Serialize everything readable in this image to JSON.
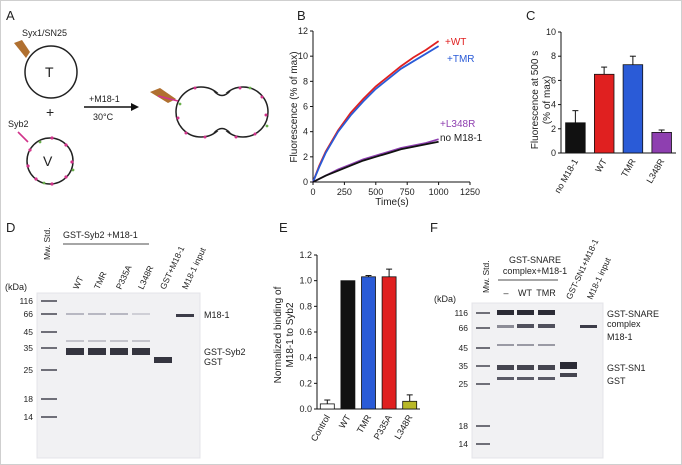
{
  "panels": {
    "A": {
      "letter": "A",
      "t_label": "Syx1/SN25",
      "t_vesicle": "T",
      "plus": "+",
      "v_label": "Syb2",
      "v_vesicle": "V",
      "condition_top": "+M18-1",
      "condition_bottom": "30°C"
    },
    "B": {
      "letter": "B",
      "ylabel": "Fluorescence (% of max)",
      "xlabel": "Time(s)",
      "yticks": [
        "0",
        "2",
        "4",
        "6",
        "8",
        "10",
        "12"
      ],
      "xticks": [
        "0",
        "250",
        "500",
        "750",
        "1000",
        "1250"
      ],
      "legend": [
        "+WT",
        "+TMR",
        "+L348R",
        "no M18-1"
      ]
    },
    "C": {
      "letter": "C",
      "ylabel_line1": "Fluorescence at 500 s",
      "ylabel_line2": "(% of max)",
      "yticks": [
        "0",
        "2",
        "4",
        "6",
        "8",
        "10"
      ],
      "categories": [
        "no M18-1",
        "WT",
        "TMR",
        "L348R"
      ]
    },
    "D": {
      "letter": "D",
      "kda": "(kDa)",
      "std": "Mw. Std.",
      "group": "GST-Syb2 +M18-1",
      "lanes": [
        "WT",
        "TMR",
        "P335A",
        "L348R",
        "GST+M18-1",
        "M18-1 input"
      ],
      "markers": [
        "116",
        "66",
        "45",
        "35",
        "25",
        "18",
        "14"
      ],
      "bands": [
        "M18-1",
        "GST-Syb2",
        "GST"
      ]
    },
    "E": {
      "letter": "E",
      "ylabel_line1": "Normalized binding of",
      "ylabel_line2": "M18-1 to Syb2",
      "yticks": [
        "0.0",
        "0.2",
        "0.4",
        "0.6",
        "0.8",
        "1.0",
        "1.2"
      ],
      "categories": [
        "Control",
        "WT",
        "TMR",
        "P335A",
        "L348R"
      ]
    },
    "F": {
      "letter": "F",
      "kda": "(kDa)",
      "std": "Mw. Std.",
      "group_line1": "GST-SNARE",
      "group_line2": "complex+M18-1",
      "lanes": [
        "–",
        "WT",
        "TMR",
        "GST-SN1+M18-1",
        "M18-1 input"
      ],
      "markers": [
        "116",
        "66",
        "45",
        "35",
        "25",
        "18",
        "14"
      ],
      "bands": [
        "GST-SNARE",
        "complex",
        "M18-1",
        "GST-SN1",
        "GST"
      ]
    }
  },
  "chart_data": [
    {
      "panel": "B",
      "type": "line",
      "xlabel": "Time(s)",
      "ylabel": "Fluorescence (% of max)",
      "xlim": [
        0,
        1250
      ],
      "ylim": [
        0,
        12
      ],
      "grid": false,
      "legend_placement": "right, next to curve ends",
      "series": [
        {
          "name": "+WT",
          "color": "#e02020",
          "x": [
            0,
            50,
            100,
            200,
            300,
            400,
            500,
            600,
            700,
            800,
            900,
            1000
          ],
          "y": [
            0,
            1.3,
            2.4,
            4.1,
            5.5,
            6.6,
            7.6,
            8.4,
            9.2,
            9.9,
            10.5,
            11.2
          ]
        },
        {
          "name": "+TMR",
          "color": "#2a5bd7",
          "x": [
            0,
            50,
            100,
            200,
            300,
            400,
            500,
            600,
            700,
            800,
            900,
            1000
          ],
          "y": [
            0,
            1.2,
            2.3,
            4.0,
            5.3,
            6.4,
            7.4,
            8.2,
            9.0,
            9.6,
            10.2,
            10.8
          ]
        },
        {
          "name": "+L348R",
          "color": "#8e3fb0",
          "x": [
            0,
            100,
            200,
            300,
            400,
            500,
            600,
            700,
            800,
            900,
            1000
          ],
          "y": [
            0,
            0.5,
            1.0,
            1.4,
            1.8,
            2.1,
            2.4,
            2.7,
            2.9,
            3.1,
            3.4
          ]
        },
        {
          "name": "no M18-1",
          "color": "#111111",
          "x": [
            0,
            100,
            200,
            300,
            400,
            500,
            600,
            700,
            800,
            900,
            1000
          ],
          "y": [
            0,
            0.5,
            0.9,
            1.3,
            1.7,
            2.0,
            2.3,
            2.6,
            2.8,
            3.0,
            3.2
          ]
        }
      ]
    },
    {
      "panel": "C",
      "type": "bar",
      "ylabel": "Fluorescence at 500 s (% of max)",
      "ylim": [
        0,
        10
      ],
      "categories": [
        "no M18-1",
        "WT",
        "TMR",
        "L348R"
      ],
      "values": [
        2.5,
        6.5,
        7.3,
        1.7
      ],
      "errors": [
        1.0,
        0.6,
        0.7,
        0.2
      ],
      "colors": [
        "#111111",
        "#e02020",
        "#2a5bd7",
        "#8e3fb0"
      ]
    },
    {
      "panel": "E",
      "type": "bar",
      "ylabel": "Normalized binding of M18-1 to Syb2",
      "ylim": [
        0,
        1.2
      ],
      "categories": [
        "Control",
        "WT",
        "TMR",
        "P335A",
        "L348R"
      ],
      "values": [
        0.04,
        1.0,
        1.03,
        1.03,
        0.06
      ],
      "errors": [
        0.03,
        0.0,
        0.01,
        0.06,
        0.05
      ],
      "colors": [
        "#ffffff",
        "#111111",
        "#2a5bd7",
        "#e02020",
        "#b8b826"
      ]
    }
  ]
}
